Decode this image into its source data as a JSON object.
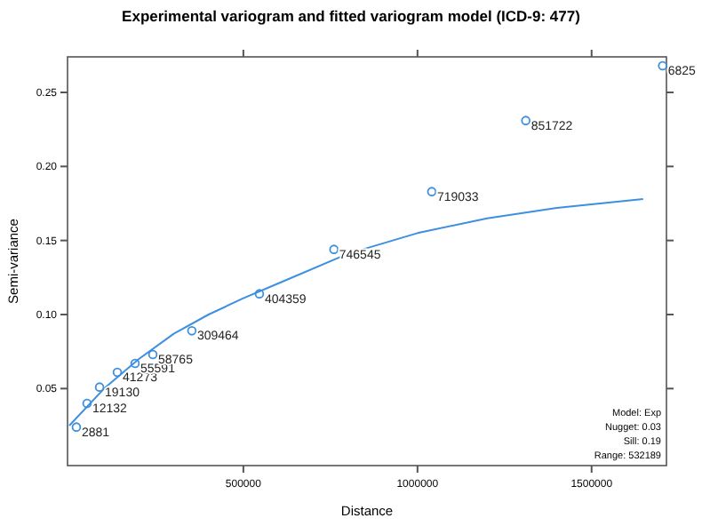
{
  "chart_data": {
    "type": "scatter",
    "title": "Experimental variogram and fitted variogram model (ICD-9: 477)",
    "xlabel": "Distance",
    "ylabel": "Semi-variance",
    "xlim": [
      -5000,
      1715000
    ],
    "ylim": [
      -0.002,
      0.274
    ],
    "xticks": [
      500000,
      1000000,
      1500000
    ],
    "yticks": [
      {
        "value": 0.05,
        "label": "0.05"
      },
      {
        "value": 0.1,
        "label": "0.10"
      },
      {
        "value": 0.15,
        "label": "0.15"
      },
      {
        "value": 0.2,
        "label": "0.20"
      },
      {
        "value": 0.25,
        "label": "0.25"
      }
    ],
    "grid": false,
    "series": [
      {
        "marker": "circle",
        "color": "#3d8fe0",
        "x": [
          20400,
          51000,
          87000,
          138000,
          189000,
          240000,
          352000,
          546000,
          760000,
          1041000,
          1311000,
          1704000
        ],
        "values": [
          0.024,
          0.04,
          0.051,
          0.061,
          0.067,
          0.073,
          0.089,
          0.114,
          0.144,
          0.183,
          0.231,
          0.268
        ]
      },
      {
        "type": "line",
        "color": "#3d8fe0",
        "x": [
          0,
          100000,
          200000,
          300000,
          400000,
          500000,
          600000,
          800000,
          1000000,
          1200000,
          1400000,
          1648000
        ],
        "values": [
          0.025,
          0.05,
          0.07,
          0.087,
          0.1,
          0.111,
          0.121,
          0.141,
          0.155,
          0.165,
          0.172,
          0.178
        ]
      }
    ],
    "annotations": [
      {
        "text": "2881",
        "x": 20400,
        "y": 0.024
      },
      {
        "text": "12132",
        "x": 51000,
        "y": 0.04
      },
      {
        "text": "19130",
        "x": 87000,
        "y": 0.051
      },
      {
        "text": "41273",
        "x": 138000,
        "y": 0.061
      },
      {
        "text": "55591",
        "x": 189000,
        "y": 0.067
      },
      {
        "text": "58765",
        "x": 240000,
        "y": 0.073
      },
      {
        "text": "309464",
        "x": 352000,
        "y": 0.089
      },
      {
        "text": "404359",
        "x": 546000,
        "y": 0.114
      },
      {
        "text": "746545",
        "x": 760000,
        "y": 0.144
      },
      {
        "text": "719033",
        "x": 1041000,
        "y": 0.183
      },
      {
        "text": "851722",
        "x": 1311000,
        "y": 0.231
      },
      {
        "text": "6825",
        "x": 1704000,
        "y": 0.268
      },
      "Model: Exp",
      "Nugget: 0.03",
      "Sill: 0.19",
      "Range: 532189"
    ]
  }
}
